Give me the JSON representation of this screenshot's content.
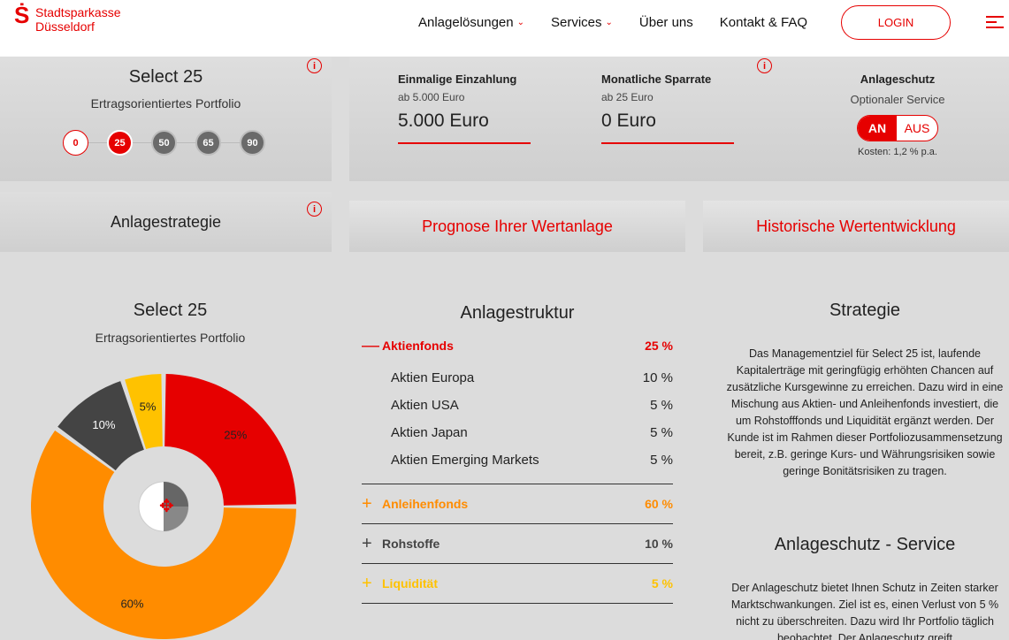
{
  "header": {
    "logo_line1": "Stadtsparkasse",
    "logo_line2": "Düsseldorf",
    "logo_mark": "Ṡ",
    "nav": [
      {
        "label": "Anlagelösungen",
        "dropdown": true
      },
      {
        "label": "Services",
        "dropdown": true
      },
      {
        "label": "Über uns",
        "dropdown": false
      },
      {
        "label": "Kontakt & FAQ",
        "dropdown": false
      }
    ],
    "login_label": "LOGIN"
  },
  "portfolio": {
    "title": "Select 25",
    "subtitle": "Ertragsorientiertes Portfolio",
    "steps": [
      "0",
      "25",
      "50",
      "65",
      "90"
    ],
    "active_step": "25"
  },
  "inputs": {
    "single": {
      "label": "Einmalige Einzahlung",
      "min": "ab 5.000 Euro",
      "value": "5.000 Euro"
    },
    "monthly": {
      "label": "Monatliche Sparrate",
      "min": "ab 25 Euro",
      "value": "0 Euro"
    },
    "protection": {
      "label": "Anlageschutz",
      "service": "Optionaler Service",
      "on": "AN",
      "off": "AUS",
      "cost": "Kosten: 1,2 % p.a."
    }
  },
  "strategy_panel": {
    "title": "Anlagestrategie"
  },
  "tabs": {
    "forecast": "Prognose Ihrer Wertanlage",
    "history": "Historische Wertentwicklung"
  },
  "chart_data": {
    "type": "pie",
    "title": "Select 25",
    "subtitle": "Ertragsorientiertes Portfolio",
    "slices": [
      {
        "label": "25%",
        "value": 25,
        "color": "#e60000"
      },
      {
        "label": "60%",
        "value": 60,
        "color": "#ff8c00"
      },
      {
        "label": "10%",
        "value": 10,
        "color": "#444444"
      },
      {
        "label": "5%",
        "value": 5,
        "color": "#ffc200"
      }
    ]
  },
  "structure": {
    "title": "Anlagestruktur",
    "categories": [
      {
        "sign": "—",
        "name": "Aktienfonds",
        "pct": "25 %",
        "color": "#e60000",
        "items": [
          {
            "name": "Aktien Europa",
            "pct": "10 %"
          },
          {
            "name": "Aktien USA",
            "pct": "5 %"
          },
          {
            "name": "Aktien Japan",
            "pct": "5 %"
          },
          {
            "name": "Aktien Emerging Markets",
            "pct": "5 %"
          }
        ]
      },
      {
        "sign": "+",
        "name": "Anleihenfonds",
        "pct": "60 %",
        "color": "#ff8c00",
        "items": []
      },
      {
        "sign": "+",
        "name": "Rohstoffe",
        "pct": "10 %",
        "color": "#444444",
        "items": []
      },
      {
        "sign": "+",
        "name": "Liquidität",
        "pct": "5 %",
        "color": "#ffc200",
        "items": []
      }
    ]
  },
  "strategy": {
    "title": "Strategie",
    "text": "Das Managementziel für Select 25 ist, laufende Kapitalerträge mit geringfügig erhöhten Chancen auf zusätzliche Kursgewinne zu erreichen. Dazu wird in eine Mischung aus Aktien- und Anleihenfonds investiert, die um Rohstofffonds und Liquidität ergänzt werden. Der Kunde ist im Rahmen dieser Portfoliozusammensetzung bereit, z.B. geringe Kurs- und Währungsrisiken sowie geringe Bonitätsrisiken zu tragen."
  },
  "protection_service": {
    "title": "Anlageschutz - Service",
    "text": "Der Anlageschutz bietet Ihnen Schutz in Zeiten starker Marktschwankungen. Ziel ist es, einen Verlust von 5 % nicht zu überschreiten. Dazu wird Ihr Portfolio täglich beobachtet. Der Anlageschutz greift"
  }
}
